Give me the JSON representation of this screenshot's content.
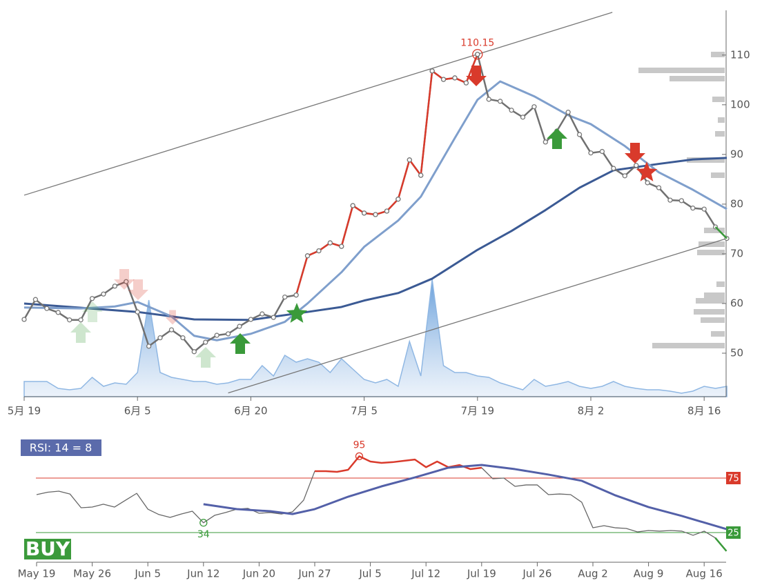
{
  "chart_data": [
    {
      "type": "line",
      "categories": [
        "5月 19",
        null,
        null,
        null,
        null,
        null,
        null,
        null,
        null,
        null,
        "6月 5",
        null,
        null,
        null,
        null,
        null,
        null,
        null,
        null,
        null,
        "6月 20",
        null,
        null,
        null,
        null,
        null,
        null,
        null,
        null,
        null,
        "7月 5",
        null,
        null,
        null,
        null,
        null,
        null,
        null,
        null,
        null,
        "7月 19",
        null,
        null,
        null,
        null,
        null,
        null,
        null,
        null,
        null,
        "8月 2",
        null,
        null,
        null,
        null,
        null,
        null,
        null,
        null,
        null,
        "8月 16",
        null,
        null
      ],
      "ylim": [
        41.25,
        119
      ],
      "yticks": [
        50,
        60,
        70,
        80,
        90,
        100,
        110
      ],
      "volume": {
        "color": "#8fb7e3",
        "values": [
          22,
          22,
          22,
          12,
          10,
          12,
          28,
          15,
          20,
          18,
          35,
          140,
          35,
          28,
          25,
          22,
          22,
          18,
          20,
          25,
          25,
          45,
          30,
          60,
          50,
          55,
          50,
          35,
          55,
          40,
          25,
          20,
          25,
          15,
          80,
          30,
          170,
          45,
          35,
          35,
          30,
          28,
          20,
          15,
          10,
          25,
          15,
          18,
          22,
          15,
          12,
          15,
          22,
          15,
          12,
          10,
          10,
          8,
          5,
          8,
          15,
          12,
          15
        ]
      },
      "series": [
        {
          "color": "#777777",
          "width": 1.3,
          "x": [
            0,
            51.9
          ],
          "values": [
            81.8,
            118.6
          ]
        },
        {
          "color": "#777777",
          "width": 1.3,
          "x": [
            18,
            62
          ],
          "values": [
            42,
            73.1
          ]
        },
        {
          "color": "#3b5a94",
          "width": 3,
          "x": [
            0,
            10,
            15,
            20,
            25,
            28,
            30,
            33,
            36,
            40,
            43,
            46,
            49,
            52,
            56,
            59,
            62
          ],
          "values": [
            60.0,
            58.3,
            56.8,
            56.7,
            58.3,
            59.3,
            60.6,
            62.1,
            65.0,
            70.8,
            74.6,
            78.8,
            83.3,
            86.8,
            88.1,
            89.0,
            89.3
          ]
        },
        {
          "color": "#7f9fcc",
          "width": 3,
          "x": [
            0,
            5,
            8,
            10,
            13,
            15,
            17,
            20,
            23,
            25,
            28,
            30,
            33,
            35,
            38,
            40,
            42,
            45,
            48,
            50,
            53,
            56,
            59,
            62
          ],
          "values": [
            59.2,
            59.0,
            59.4,
            60.3,
            57.4,
            53.5,
            52.6,
            53.9,
            56.3,
            60.0,
            66.3,
            71.4,
            76.7,
            81.5,
            93.3,
            101.0,
            104.7,
            101.7,
            97.9,
            96.1,
            91.7,
            86.4,
            82.9,
            79.0
          ]
        },
        {
          "color": "#707070",
          "width": 2.5,
          "markers": true,
          "values": [
            56.8,
            60.8,
            59.0,
            58.2,
            56.7,
            56.7,
            61.0,
            61.9,
            63.5,
            64.4,
            58.3,
            51.4,
            53.1,
            54.7,
            53.1,
            50.3,
            52.2,
            53.6,
            53.9,
            55.4,
            56.8,
            57.9,
            57.2,
            61.3,
            61.7,
            69.6,
            70.6,
            72.2,
            71.5,
            79.7,
            78.2,
            77.9,
            78.6,
            81.0,
            88.9,
            85.8,
            106.8,
            105.1,
            105.4,
            104.4,
            110.15,
            101.1,
            100.7,
            98.9,
            97.5,
            99.6,
            92.5,
            94.7,
            98.5,
            94.0,
            90.3,
            90.6,
            87.2,
            85.7,
            87.8,
            84.3,
            83.3,
            80.8,
            80.7,
            79.2,
            79.0,
            75.4,
            73.1
          ]
        },
        {
          "color": "#d93a2b",
          "width": 2.5,
          "markers": true,
          "x": [
            24,
            25,
            26,
            27,
            28,
            29,
            30,
            31,
            32,
            33,
            34,
            35,
            36,
            37,
            38,
            39,
            40
          ],
          "values": [
            61.7,
            69.6,
            70.6,
            72.2,
            71.5,
            79.7,
            78.2,
            77.9,
            78.6,
            81.0,
            88.9,
            85.8,
            106.8,
            105.1,
            105.4,
            104.4,
            110.15
          ]
        },
        {
          "color": "#3a9a3a",
          "width": 2.5,
          "x": [
            61,
            62
          ],
          "values": [
            75.4,
            73.1
          ]
        }
      ],
      "annotations": [
        {
          "text": "110.15",
          "x": 40,
          "value": 110.15,
          "color": "#d93a2b"
        }
      ]
    },
    {
      "type": "line",
      "title": "RSI: 14 = 8",
      "signal": "BUY",
      "categories": [
        "May 19",
        null,
        null,
        null,
        null,
        "May 26",
        null,
        null,
        null,
        null,
        "Jun 5",
        null,
        null,
        null,
        null,
        "Jun 12",
        null,
        null,
        null,
        null,
        "Jun 20",
        null,
        null,
        null,
        null,
        "Jun 27",
        null,
        null,
        null,
        null,
        "Jul 5",
        null,
        null,
        null,
        null,
        "Jul 12",
        null,
        null,
        null,
        null,
        "Jul 19",
        null,
        null,
        null,
        null,
        "Jul 26",
        null,
        null,
        null,
        null,
        "Aug 2",
        null,
        null,
        null,
        null,
        "Aug 9",
        null,
        null,
        null,
        null,
        "Aug 16",
        null,
        null
      ],
      "ylim": [
        0,
        100
      ],
      "yticks": [
        25,
        75
      ],
      "tick_colors": [
        "#3a9a3a",
        "#d93a2b"
      ],
      "series": [
        {
          "color": "#666666",
          "width": 1.3,
          "values": [
            59.8,
            62,
            63,
            60.4,
            47.8,
            48.4,
            51,
            48.4,
            54.7,
            61,
            46.5,
            41.5,
            38.9,
            42,
            44.6,
            34,
            40.8,
            43.4,
            46.5,
            47.2,
            42.7,
            43.4,
            42,
            44,
            54.7,
            81.3,
            81.3,
            80.7,
            82.6,
            95,
            90.2,
            88.9,
            89.6,
            90.8,
            92,
            85,
            90.2,
            85,
            87,
            83.2,
            84.5,
            74.4,
            75,
            67.4,
            68.7,
            68.7,
            59.8,
            60.4,
            59.8,
            52.8,
            29.4,
            31.3,
            29.4,
            28.8,
            25.6,
            26.9,
            26.3,
            26.9,
            26.3,
            22.5,
            26.3,
            20.1,
            8
          ]
        },
        {
          "color": "#d93a2b",
          "width": 2.5,
          "x": [
            25,
            26,
            27,
            28,
            29,
            30,
            31,
            32,
            33,
            34,
            35,
            36,
            37,
            38,
            39,
            40
          ],
          "values": [
            81.3,
            81.3,
            80.7,
            82.6,
            95,
            90.2,
            88.9,
            89.6,
            90.8,
            92,
            85,
            90.2,
            85,
            87,
            83.2,
            84.5
          ]
        },
        {
          "color": "#3a9a3a",
          "width": 2.5,
          "x": [
            61,
            62
          ],
          "values": [
            20.1,
            8
          ]
        },
        {
          "color": "#5360a8",
          "width": 3,
          "x": [
            15,
            18,
            21,
            23,
            25,
            28,
            31,
            34,
            37,
            40,
            43,
            46,
            49,
            52,
            55,
            58,
            62
          ],
          "values": [
            51,
            46.5,
            44.6,
            42,
            46.5,
            57.9,
            67.4,
            75.6,
            84.5,
            87,
            83.2,
            78.2,
            72.5,
            59.2,
            48.4,
            40.2,
            28.2
          ]
        }
      ],
      "annotations": [
        {
          "text": "95",
          "x": 29,
          "value": 95,
          "color": "#d93a2b"
        },
        {
          "text": "34",
          "x": 15,
          "value": 34,
          "color": "#3a9a3a",
          "below": true
        }
      ]
    }
  ]
}
